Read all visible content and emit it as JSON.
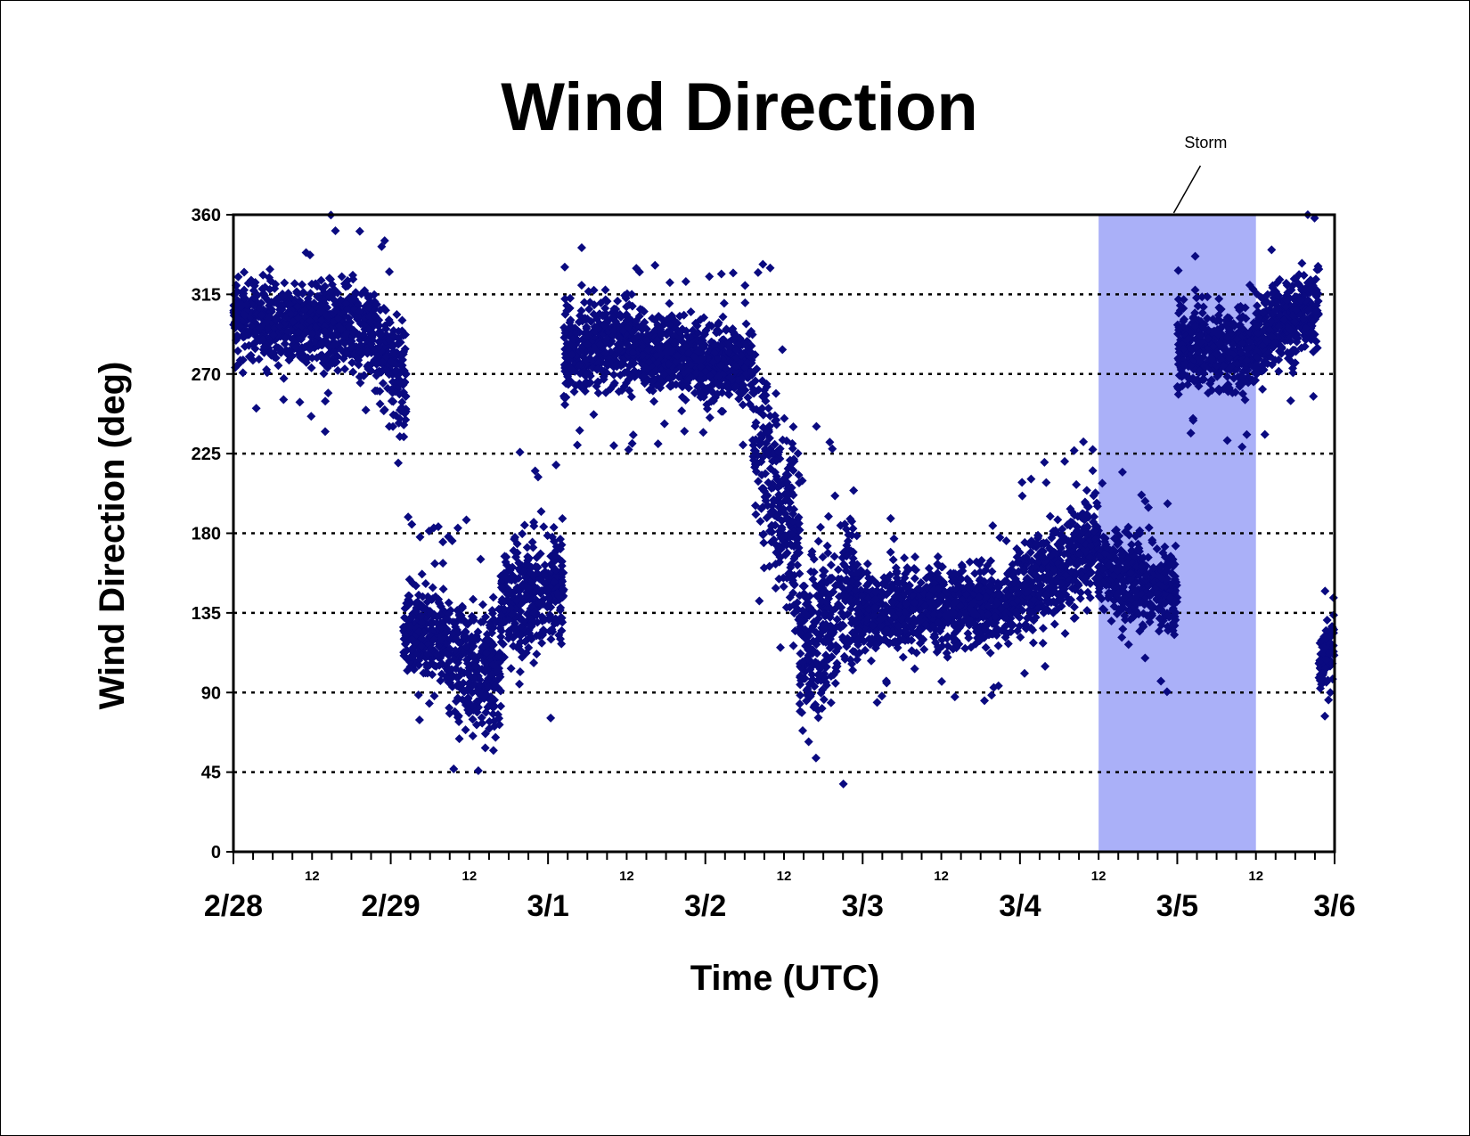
{
  "chart_data": {
    "type": "scatter",
    "title": "Wind Direction",
    "xlabel": "Time (UTC)",
    "ylabel": "Wind Direction (deg)",
    "ylim": [
      0,
      360
    ],
    "xlim_days": [
      0,
      7
    ],
    "yticks": [
      "0",
      "45",
      "90",
      "135",
      "180",
      "225",
      "270",
      "315",
      "360"
    ],
    "x_day_labels": [
      "2/28",
      "2/29",
      "3/1",
      "3/2",
      "3/3",
      "3/4",
      "3/5",
      "3/6"
    ],
    "x_hour_label": "12",
    "grid": "horizontal dotted",
    "marker": "diamond",
    "series_color": "#0a0a80",
    "shaded_region": {
      "start": "3/4 12",
      "end": "3/5 12",
      "start_day": 5.5,
      "end_day": 6.5,
      "color": "#aab0f8",
      "label": "Storm"
    },
    "segments": [
      {
        "start": 0.0,
        "end": 0.55,
        "center_start": 300,
        "center_end": 298,
        "spread": 18
      },
      {
        "start": 0.55,
        "end": 0.9,
        "center_start": 298,
        "center_end": 295,
        "spread": 22
      },
      {
        "start": 0.9,
        "end": 1.1,
        "center_start": 285,
        "center_end": 270,
        "spread": 25
      },
      {
        "start": 1.08,
        "end": 1.35,
        "center_start": 130,
        "center_end": 120,
        "spread": 22
      },
      {
        "start": 1.35,
        "end": 1.7,
        "center_start": 110,
        "center_end": 100,
        "spread": 28
      },
      {
        "start": 1.7,
        "end": 2.1,
        "center_start": 140,
        "center_end": 150,
        "spread": 28
      },
      {
        "start": 2.1,
        "end": 2.6,
        "center_start": 282,
        "center_end": 288,
        "spread": 20
      },
      {
        "start": 2.6,
        "end": 3.3,
        "center_start": 283,
        "center_end": 275,
        "spread": 18
      },
      {
        "start": 3.3,
        "end": 3.6,
        "center_start": 240,
        "center_end": 170,
        "spread": 40
      },
      {
        "start": 3.6,
        "end": 3.95,
        "center_start": 110,
        "center_end": 150,
        "spread": 40
      },
      {
        "start": 3.95,
        "end": 4.95,
        "center_start": 135,
        "center_end": 140,
        "spread": 18
      },
      {
        "start": 4.95,
        "end": 5.5,
        "center_start": 145,
        "center_end": 175,
        "spread": 22
      },
      {
        "start": 5.5,
        "end": 6.0,
        "center_start": 160,
        "center_end": 145,
        "spread": 20
      },
      {
        "start": 6.0,
        "end": 6.5,
        "center_start": 285,
        "center_end": 282,
        "spread": 18
      },
      {
        "start": 6.5,
        "end": 6.9,
        "center_start": 290,
        "center_end": 310,
        "spread": 20
      },
      {
        "start": 6.9,
        "end": 7.0,
        "center_start": 110,
        "center_end": 115,
        "spread": 15
      }
    ]
  }
}
